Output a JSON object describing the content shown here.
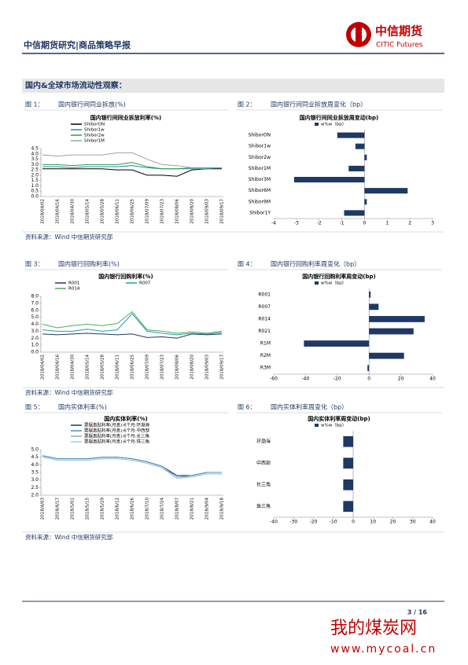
{
  "header": {
    "title": "中信期货研究|商品策略早报",
    "logo_cn": "中信期货",
    "logo_en": "CITIC Futures"
  },
  "section_title": "国内&全球市场流动性观察：",
  "figures": [
    {
      "label": "图 1：",
      "caption": "国内银行间同业拆放(%)",
      "chart": {
        "type": "line",
        "title": "国内银行间同业拆放利率(%)",
        "categories": [
          "2018/04/02",
          "2018/04/16",
          "2018/04/30",
          "2018/05/14",
          "2018/05/28",
          "2018/06/11",
          "2018/06/25",
          "2018/07/09",
          "2018/07/23",
          "2018/08/06",
          "2018/08/20",
          "2018/09/03",
          "2018/09/17"
        ],
        "series": [
          {
            "name": "ShiborON",
            "color": "#000000",
            "values": [
              2.6,
              2.6,
              2.6,
              2.6,
              2.6,
              2.5,
              2.5,
              2.0,
              2.0,
              1.9,
              2.5,
              2.6,
              2.6
            ]
          },
          {
            "name": "Shibor1w",
            "color": "#1f8fa0",
            "values": [
              2.8,
              2.8,
              2.7,
              2.8,
              2.8,
              2.8,
              2.9,
              2.7,
              2.6,
              2.6,
              2.6,
              2.6,
              2.7
            ]
          },
          {
            "name": "Shibor2w",
            "color": "#2e9a48",
            "values": [
              3.0,
              3.0,
              2.9,
              3.0,
              3.0,
              3.0,
              3.2,
              2.8,
              2.6,
              2.6,
              2.7,
              2.7,
              2.7
            ]
          },
          {
            "name": "Shibor1M",
            "color": "#a0a0a0",
            "values": [
              3.9,
              3.8,
              3.9,
              3.9,
              3.9,
              4.1,
              4.1,
              3.5,
              3.0,
              2.9,
              2.7,
              2.7,
              2.7
            ]
          }
        ],
        "ylim": [
          0,
          4.5
        ],
        "yticks": [
          {
            "value": 0,
            "label": "0.0"
          },
          0.5,
          {
            "value": 1,
            "label": "1.0"
          },
          1.5,
          {
            "value": 2,
            "label": "2.0"
          },
          2.5,
          {
            "value": 3,
            "label": "3.0"
          },
          3.5,
          {
            "value": 4,
            "label": "4.0"
          },
          4.5
        ]
      }
    },
    {
      "label": "图 2：",
      "caption": "国内银行间同业拆放周变化（bp）",
      "chart": {
        "type": "hbar",
        "title": "国内银行间同业拆放周变动(bp)",
        "categories": [
          "ShiborON",
          "Shibor1w",
          "Shibor2w",
          "Shibor1M",
          "Shibor3M",
          "Shibor6M",
          "Shibor9M",
          "Shibor1Y"
        ],
        "series": [
          {
            "name": "w%w（bp）",
            "color": "#1f3864",
            "values": [
              -1.2,
              -0.4,
              0.1,
              -0.7,
              -3.1,
              1.9,
              0.1,
              -0.9
            ]
          }
        ],
        "xlim": [
          -4,
          3
        ],
        "xticks": [
          -4,
          -3,
          -2,
          -1,
          0,
          1,
          2,
          3
        ]
      }
    },
    {
      "label": "图 3：",
      "caption": "国内银行回购利率(%)",
      "chart": {
        "type": "line",
        "title": "国内银行回购利率(%)",
        "categories": [
          "2018/04/02",
          "2018/04/16",
          "2018/04/30",
          "2018/05/14",
          "2018/05/28",
          "2018/06/11",
          "2018/06/25",
          "2018/07/09",
          "2018/07/23",
          "2018/08/06",
          "2018/08/20",
          "2018/09/03",
          "2018/09/17"
        ],
        "series": [
          {
            "name": "R001",
            "color": "#1f3864",
            "values": [
              2.6,
              2.5,
              2.6,
              2.7,
              2.6,
              2.5,
              2.6,
              2.1,
              2.2,
              2.0,
              2.6,
              2.5,
              2.6
            ]
          },
          {
            "name": "R007",
            "color": "#1fa0b0",
            "values": [
              3.2,
              3.0,
              3.0,
              3.3,
              3.0,
              3.2,
              5.5,
              3.0,
              2.7,
              2.5,
              2.7,
              2.6,
              2.8
            ]
          },
          {
            "name": "R014",
            "color": "#4caf50",
            "values": [
              4.0,
              3.5,
              3.8,
              4.0,
              3.8,
              4.1,
              5.8,
              3.2,
              3.0,
              2.7,
              2.9,
              2.7,
              3.0
            ]
          }
        ],
        "ylim": [
          0,
          8
        ],
        "yticks": [
          {
            "value": 0,
            "label": "0.0"
          },
          {
            "value": 1,
            "label": "1.0"
          },
          {
            "value": 2,
            "label": "2.0"
          },
          {
            "value": 3,
            "label": "3.0"
          },
          {
            "value": 4,
            "label": "4.0"
          },
          {
            "value": 5,
            "label": "5.0"
          },
          {
            "value": 6,
            "label": "6.0"
          },
          {
            "value": 7,
            "label": "7.0"
          },
          {
            "value": 8,
            "label": "8.0"
          }
        ]
      }
    },
    {
      "label": "图 4：",
      "caption": "国内银行回购利率周变化（bp）",
      "chart": {
        "type": "hbar",
        "title": "国内银行回购利率周变动(bp)",
        "categories": [
          "R001",
          "R007",
          "R014",
          "R021",
          "R1M",
          "R2M",
          "R3M"
        ],
        "series": [
          {
            "name": "w%w（bp）",
            "color": "#1f3864",
            "values": [
              1,
              6,
              35,
              28,
              -41,
              22,
              -1
            ]
          }
        ],
        "xlim": [
          -60,
          40
        ],
        "xticks": [
          -60,
          -40,
          -20,
          0,
          20,
          40
        ]
      }
    },
    {
      "label": "图 5：",
      "caption": "国内实体利率(%)",
      "chart": {
        "type": "line",
        "title": "国内实体利率(%)",
        "categories": [
          "2018/4/03",
          "2018/4/17",
          "2018/5/01",
          "2018/5/15",
          "2018/5/29",
          "2018/6/12",
          "2018/6/26",
          "2018/7/10",
          "2018/7/24",
          "2018/8/07",
          "2018/8/21",
          "2018/9/04",
          "2018/9/18"
        ],
        "series": [
          {
            "name": "票据直贴利率(月息):6个月:环渤海",
            "color": "#1f3864",
            "values": [
              4.6,
              4.4,
              4.4,
              4.4,
              4.5,
              4.5,
              4.4,
              4.2,
              3.9,
              3.3,
              3.3,
              3.5,
              3.5
            ]
          },
          {
            "name": "票据直贴利率(月息):6个月:中西部",
            "color": "#4a90c0",
            "values": [
              4.6,
              4.4,
              4.4,
              4.4,
              4.5,
              4.5,
              4.4,
              4.2,
              3.9,
              3.2,
              3.3,
              3.5,
              3.5
            ]
          },
          {
            "name": "票据直贴利率(月息):6个月:长三角",
            "color": "#7fb0d0",
            "values": [
              4.5,
              4.3,
              4.3,
              4.3,
              4.4,
              4.4,
              4.3,
              4.1,
              3.8,
              3.2,
              3.2,
              3.4,
              3.4
            ]
          },
          {
            "name": "票据直贴利率(月息):6个月:珠三角",
            "color": "#a8c8e0",
            "values": [
              4.5,
              4.3,
              4.3,
              4.3,
              4.4,
              4.4,
              4.3,
              4.1,
              3.8,
              3.1,
              3.2,
              3.4,
              3.4
            ]
          }
        ],
        "ylim": [
          2,
          5
        ],
        "yticks": [
          {
            "value": 2,
            "label": "2.0"
          },
          2.5,
          {
            "value": 3,
            "label": "3.0"
          },
          3.5,
          {
            "value": 4,
            "label": "4.0"
          },
          4.5,
          {
            "value": 5,
            "label": "5.0"
          }
        ]
      }
    },
    {
      "label": "图 6：",
      "caption": "国内实体利率周变化（bp）",
      "chart": {
        "type": "hbar",
        "title": "国内实体利率周变动(bp)",
        "categories": [
          "环渤海",
          "中西部",
          "长三角",
          "珠三角"
        ],
        "series": [
          {
            "name": "w%w（bp）",
            "color": "#1f3864",
            "values": [
              -5,
              -5,
              -5,
              -5
            ]
          }
        ],
        "xlim": [
          -40,
          40
        ],
        "xticks": [
          -40,
          -30,
          -20,
          -10,
          0,
          10,
          20,
          30,
          40
        ]
      }
    }
  ],
  "sources": [
    "资料来源：Wind 中信期货研究部",
    "资料来源：Wind 中信期货研究部",
    "资料来源：Wind 中信期货研究部"
  ],
  "page_number": "3 / 16",
  "watermark": {
    "name": "我的煤炭网",
    "url": "www.mycoal.cn"
  }
}
